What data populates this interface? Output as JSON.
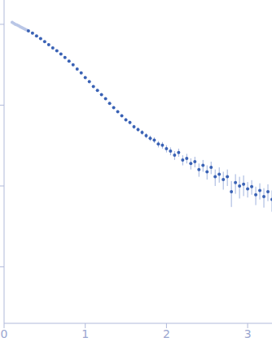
{
  "chart_data": {
    "type": "scatter",
    "log": "y",
    "tick_labels": "x",
    "xlim": [
      0,
      3.3
    ],
    "xticks": [
      0,
      1,
      2,
      3
    ],
    "ylim": [
      0.0002,
      2
    ],
    "yticks": [
      0.001,
      0.01,
      0.1,
      1
    ],
    "series": [
      {
        "color": "#b9c6e6",
        "marker": "circle",
        "x": [
          0.1,
          0.12,
          0.14,
          0.16,
          0.18,
          0.2,
          0.22,
          0.24,
          0.26,
          0.28
        ],
        "values": [
          1.06,
          1.03,
          1.0,
          0.98,
          0.96,
          0.93,
          0.91,
          0.89,
          0.87,
          0.85
        ]
      },
      {
        "color": "#3a62b5",
        "marker": "circle",
        "x": [
          0.3,
          0.35,
          0.4,
          0.45,
          0.5,
          0.55,
          0.6,
          0.65,
          0.7,
          0.75,
          0.8,
          0.85,
          0.9,
          0.95,
          1.0,
          1.05,
          1.1,
          1.15,
          1.2,
          1.25,
          1.3,
          1.35,
          1.4,
          1.45,
          1.5,
          1.55,
          1.6,
          1.65,
          1.7,
          1.75,
          1.8,
          1.85,
          1.9,
          1.95,
          2.0,
          2.05,
          2.1,
          2.15,
          2.2,
          2.25,
          2.3,
          2.35,
          2.4,
          2.45,
          2.5,
          2.55,
          2.6,
          2.65,
          2.7,
          2.75,
          2.8,
          2.85,
          2.9,
          2.95,
          3.0,
          3.05,
          3.1,
          3.15,
          3.2,
          3.25,
          3.3
        ],
        "values": [
          0.83,
          0.78,
          0.72,
          0.665,
          0.61,
          0.56,
          0.51,
          0.47,
          0.43,
          0.39,
          0.35,
          0.315,
          0.28,
          0.25,
          0.22,
          0.195,
          0.17,
          0.152,
          0.135,
          0.12,
          0.105,
          0.093,
          0.083,
          0.074,
          0.066,
          0.061,
          0.054,
          0.05,
          0.046,
          0.042,
          0.039,
          0.037,
          0.033,
          0.032,
          0.029,
          0.027,
          0.024,
          0.026,
          0.021,
          0.022,
          0.019,
          0.02,
          0.016,
          0.018,
          0.015,
          0.017,
          0.013,
          0.014,
          0.012,
          0.013,
          0.0085,
          0.011,
          0.01,
          0.0105,
          0.0092,
          0.0098,
          0.0078,
          0.0088,
          0.0074,
          0.0085,
          0.0068
        ],
        "errors": [
          0.005,
          0.005,
          0.005,
          0.005,
          0.005,
          0.005,
          0.005,
          0.005,
          0.005,
          0.005,
          0.002,
          0.002,
          0.002,
          0.002,
          0.002,
          0.002,
          0.002,
          0.002,
          0.002,
          0.002,
          0.002,
          0.002,
          0.002,
          0.002,
          0.003,
          0.003,
          0.003,
          0.003,
          0.003,
          0.003,
          0.003,
          0.003,
          0.003,
          0.003,
          0.003,
          0.003,
          0.003,
          0.003,
          0.003,
          0.003,
          0.003,
          0.003,
          0.003,
          0.003,
          0.003,
          0.003,
          0.003,
          0.003,
          0.003,
          0.003,
          0.003,
          0.003,
          0.003,
          0.003,
          0.002,
          0.002,
          0.002,
          0.002,
          0.002,
          0.002,
          0.002
        ]
      }
    ]
  }
}
